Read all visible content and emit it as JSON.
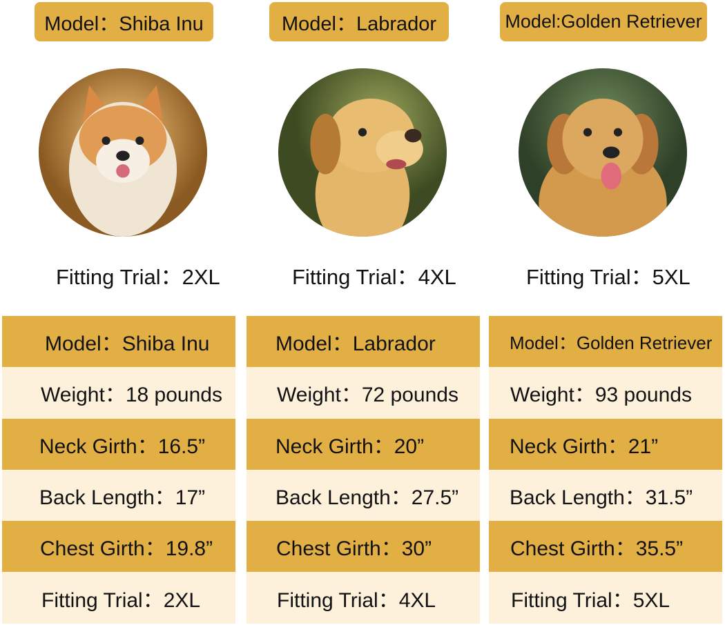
{
  "colors": {
    "gold": "#E2AF45",
    "cream": "#FDF1DC"
  },
  "dogs": [
    {
      "header": "Model：Shiba Inu",
      "photo": "shiba-inu-photo",
      "fitting_trial": "Fitting Trial：2XL",
      "rows": [
        "Model：Shiba Inu",
        "Weight：18 pounds",
        "Neck Girth：16.5”",
        "Back Length：17”",
        "Chest Girth：19.8”",
        "Fitting Trial：2XL"
      ]
    },
    {
      "header": "Model：Labrador",
      "photo": "labrador-photo",
      "fitting_trial": "Fitting Trial：4XL",
      "rows": [
        "Model：Labrador",
        "Weight：72 pounds",
        "Neck Girth：20”",
        "Back Length：27.5”",
        "Chest Girth：30”",
        "Fitting Trial：4XL"
      ]
    },
    {
      "header": "Model:Golden Retriever",
      "photo": "golden-retriever-photo",
      "fitting_trial": "Fitting Trial：5XL",
      "rows": [
        "Model：Golden Retriever",
        "Weight：93 pounds",
        "Neck Girth：21”",
        "Back Length：31.5”",
        "Chest Girth：35.5”",
        "Fitting Trial：5XL"
      ]
    }
  ]
}
